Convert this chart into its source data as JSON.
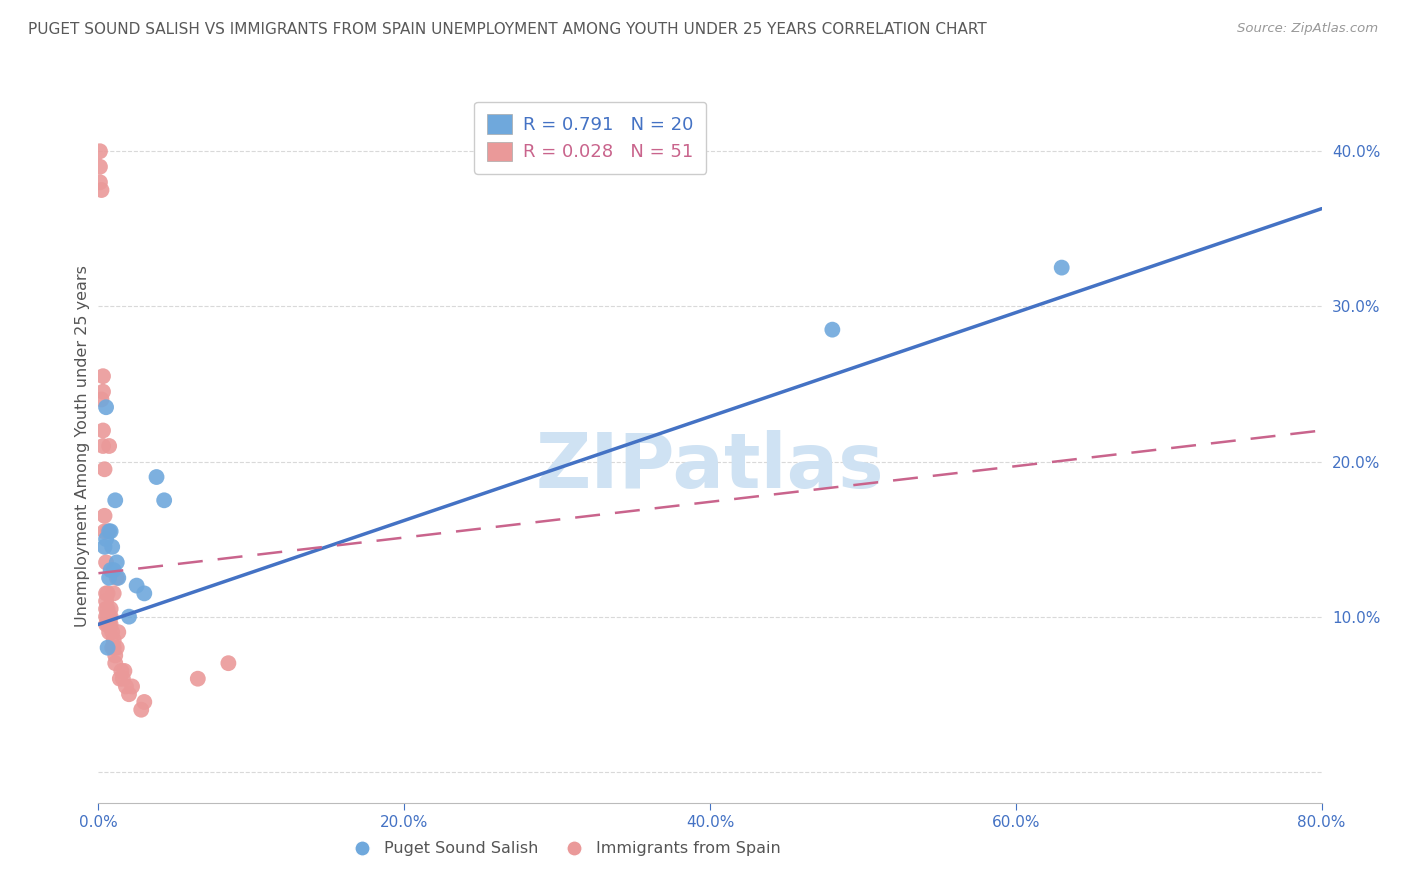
{
  "title": "PUGET SOUND SALISH VS IMMIGRANTS FROM SPAIN UNEMPLOYMENT AMONG YOUTH UNDER 25 YEARS CORRELATION CHART",
  "source": "Source: ZipAtlas.com",
  "ylabel": "Unemployment Among Youth under 25 years",
  "xlim": [
    0.0,
    0.8
  ],
  "ylim": [
    -0.02,
    0.44
  ],
  "yticks_right": [
    0.0,
    0.1,
    0.2,
    0.3,
    0.4
  ],
  "ytick_labels_right": [
    "",
    "10.0%",
    "20.0%",
    "30.0%",
    "40.0%"
  ],
  "xticks": [
    0.0,
    0.2,
    0.4,
    0.6,
    0.8
  ],
  "xtick_labels": [
    "0.0%",
    "20.0%",
    "40.0%",
    "60.0%",
    "80.0%"
  ],
  "blue_label": "Puget Sound Salish",
  "pink_label": "Immigrants from Spain",
  "blue_R": 0.791,
  "blue_N": 20,
  "pink_R": 0.028,
  "pink_N": 51,
  "blue_color": "#6fa8dc",
  "pink_color": "#ea9999",
  "blue_line_color": "#4472c4",
  "pink_line_color": "#c9648c",
  "watermark": "ZIPatlas",
  "watermark_color": "#cfe2f3",
  "blue_points_x": [
    0.004,
    0.005,
    0.005,
    0.006,
    0.007,
    0.007,
    0.008,
    0.008,
    0.009,
    0.01,
    0.011,
    0.012,
    0.013,
    0.02,
    0.025,
    0.03,
    0.038,
    0.043,
    0.48,
    0.63
  ],
  "blue_points_y": [
    0.145,
    0.15,
    0.235,
    0.08,
    0.125,
    0.155,
    0.13,
    0.155,
    0.145,
    0.13,
    0.175,
    0.135,
    0.125,
    0.1,
    0.12,
    0.115,
    0.19,
    0.175,
    0.285,
    0.325
  ],
  "pink_points_x": [
    0.001,
    0.001,
    0.001,
    0.002,
    0.002,
    0.003,
    0.003,
    0.003,
    0.003,
    0.004,
    0.004,
    0.004,
    0.005,
    0.005,
    0.005,
    0.005,
    0.005,
    0.005,
    0.006,
    0.006,
    0.006,
    0.006,
    0.006,
    0.007,
    0.007,
    0.007,
    0.007,
    0.008,
    0.008,
    0.008,
    0.009,
    0.009,
    0.01,
    0.01,
    0.01,
    0.011,
    0.011,
    0.012,
    0.012,
    0.013,
    0.014,
    0.015,
    0.016,
    0.017,
    0.018,
    0.02,
    0.022,
    0.028,
    0.03,
    0.065,
    0.085
  ],
  "pink_points_y": [
    0.38,
    0.39,
    0.4,
    0.375,
    0.24,
    0.245,
    0.255,
    0.21,
    0.22,
    0.155,
    0.165,
    0.195,
    0.095,
    0.1,
    0.105,
    0.11,
    0.115,
    0.135,
    0.095,
    0.1,
    0.105,
    0.115,
    0.155,
    0.09,
    0.095,
    0.1,
    0.21,
    0.095,
    0.1,
    0.105,
    0.08,
    0.09,
    0.08,
    0.085,
    0.115,
    0.07,
    0.075,
    0.08,
    0.125,
    0.09,
    0.06,
    0.065,
    0.06,
    0.065,
    0.055,
    0.05,
    0.055,
    0.04,
    0.045,
    0.06,
    0.07
  ],
  "blue_line_x": [
    0.0,
    0.8
  ],
  "blue_line_y_intercept": 0.095,
  "blue_line_slope": 0.335,
  "pink_line_x": [
    0.0,
    0.8
  ],
  "pink_line_y_intercept": 0.128,
  "pink_line_slope": 0.115,
  "grid_color": "#d9d9d9",
  "bg_color": "#ffffff",
  "axis_label_color": "#4472c4",
  "title_color": "#595959"
}
